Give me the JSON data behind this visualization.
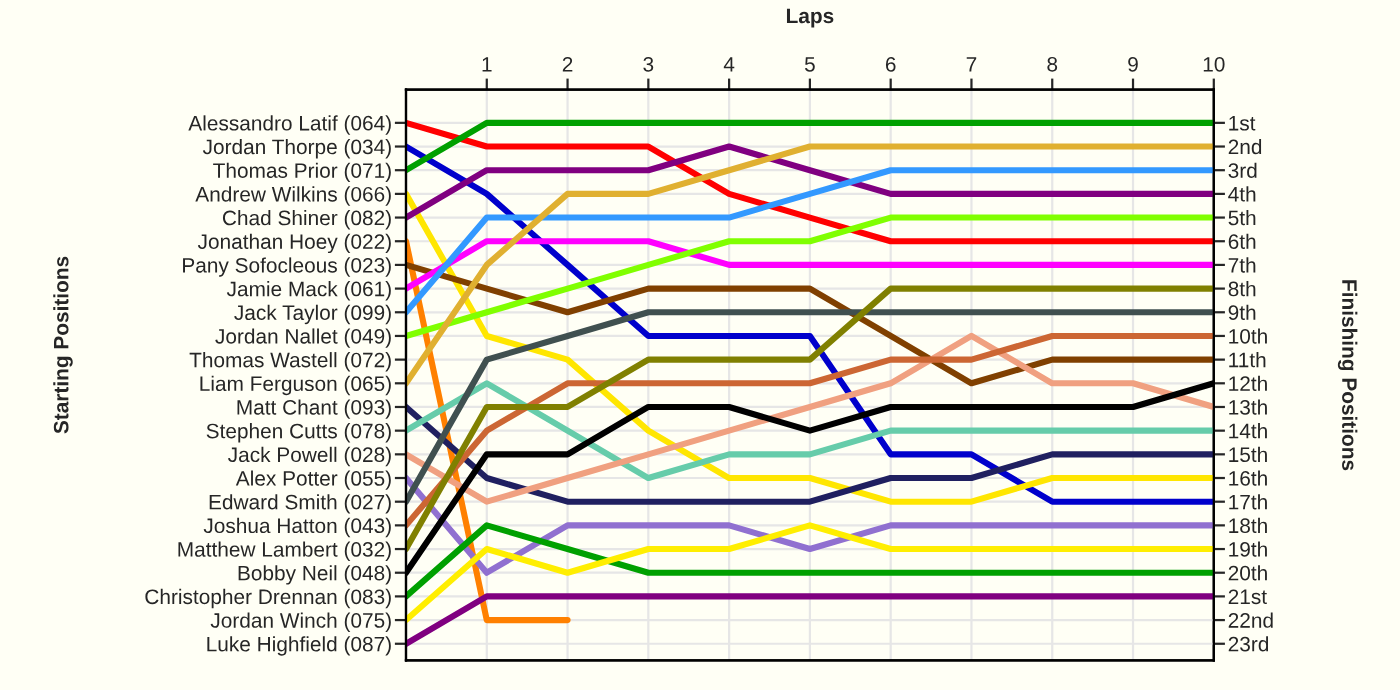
{
  "chart_data": {
    "type": "line",
    "xlabel": "Laps",
    "annotations": [
      "Starting Positions"
    ],
    "y2label": "Finishing Positions",
    "x": [
      0,
      1,
      2,
      3,
      4,
      5,
      6,
      7,
      8,
      9,
      10
    ],
    "xlim": [
      0,
      10
    ],
    "xticks": [
      1,
      2,
      3,
      4,
      5,
      6,
      7,
      8,
      9,
      10
    ],
    "y_categories": [
      "Alessandro Latif (064)",
      "Jordan Thorpe (034)",
      "Thomas Prior (071)",
      "Andrew Wilkins (066)",
      "Chad Shiner (082)",
      "Jonathan Hoey (022)",
      "Pany Sofocleous (023)",
      "Jamie Mack (061)",
      "Jack Taylor (099)",
      "Jordan Nallet (049)",
      "Thomas Wastell (072)",
      "Liam Ferguson (065)",
      "Matt Chant (093)",
      "Stephen Cutts (078)",
      "Jack Powell (028)",
      "Alex Potter (055)",
      "Edward Smith (027)",
      "Joshua Hatton (043)",
      "Matthew Lambert (032)",
      "Bobby Neil (048)",
      "Christopher Drennan (083)",
      "Jordan Winch (075)",
      "Luke Highfield (087)"
    ],
    "y2lim": [
      23.7,
      -0.4
    ],
    "y2ticks": [
      {
        "value": 1,
        "label": "1st"
      },
      {
        "value": 2,
        "label": "2nd"
      },
      {
        "value": 3,
        "label": "3rd"
      },
      {
        "value": 4,
        "label": "4th"
      },
      {
        "value": 5,
        "label": "5th"
      },
      {
        "value": 6,
        "label": "6th"
      },
      {
        "value": 7,
        "label": "7th"
      },
      {
        "value": 8,
        "label": "8th"
      },
      {
        "value": 9,
        "label": "9th"
      },
      {
        "value": 10,
        "label": "10th"
      },
      {
        "value": 11,
        "label": "11th"
      },
      {
        "value": 12,
        "label": "12th"
      },
      {
        "value": 13,
        "label": "13th"
      },
      {
        "value": 14,
        "label": "14th"
      },
      {
        "value": 15,
        "label": "15th"
      },
      {
        "value": 16,
        "label": "16th"
      },
      {
        "value": 17,
        "label": "17th"
      },
      {
        "value": 18,
        "label": "18th"
      },
      {
        "value": 19,
        "label": "19th"
      },
      {
        "value": 20,
        "label": "20th"
      },
      {
        "value": 21,
        "label": "21st"
      },
      {
        "value": 22,
        "label": "22nd"
      },
      {
        "value": 23,
        "label": "23rd"
      }
    ],
    "grid": true,
    "legend": false,
    "marker": "none",
    "line_style": "solid",
    "series": [
      {
        "axis": "y2",
        "color": "#ff0000",
        "values": [
          1,
          2,
          2,
          2,
          4,
          5,
          6,
          6,
          6,
          6,
          6
        ]
      },
      {
        "axis": "y2",
        "color": "#0000cc",
        "values": [
          2,
          4,
          7,
          10,
          10,
          10,
          15,
          15,
          17,
          17,
          17
        ]
      },
      {
        "axis": "y2",
        "color": "#00a000",
        "values": [
          3,
          1,
          1,
          1,
          1,
          1,
          1,
          1,
          1,
          1,
          1
        ]
      },
      {
        "axis": "y2",
        "color": "#ffe600",
        "values": [
          4,
          10,
          11,
          14,
          16,
          16,
          17,
          17,
          16,
          16,
          16
        ]
      },
      {
        "axis": "y2",
        "color": "#800080",
        "values": [
          5,
          3,
          3,
          3,
          2,
          3,
          4,
          4,
          4,
          4,
          4
        ]
      },
      {
        "axis": "y2",
        "color": "#ff8000",
        "values": [
          6,
          22,
          22,
          null,
          null,
          null,
          null,
          null,
          null,
          null,
          null
        ]
      },
      {
        "axis": "y2",
        "color": "#804000",
        "values": [
          7,
          8,
          9,
          8,
          8,
          8,
          10,
          12,
          11,
          11,
          11
        ]
      },
      {
        "axis": "y2",
        "color": "#ff00ff",
        "values": [
          8,
          6,
          6,
          6,
          7,
          7,
          7,
          7,
          7,
          7,
          7
        ]
      },
      {
        "axis": "y2",
        "color": "#3399ff",
        "values": [
          9,
          5,
          5,
          5,
          5,
          4,
          3,
          3,
          3,
          3,
          3
        ]
      },
      {
        "axis": "y2",
        "color": "#80ff00",
        "values": [
          10,
          9,
          8,
          7,
          6,
          6,
          5,
          5,
          5,
          5,
          5
        ]
      },
      {
        "axis": "y2",
        "color": "#e0b030",
        "values": [
          12,
          7,
          4,
          4,
          3,
          2,
          2,
          2,
          2,
          2,
          2
        ]
      },
      {
        "axis": "y2",
        "color": "#202060",
        "values": [
          13,
          16,
          17,
          17,
          17,
          17,
          16,
          16,
          15,
          15,
          15
        ]
      },
      {
        "axis": "y2",
        "color": "#66ccaa",
        "values": [
          14,
          12,
          14,
          16,
          15,
          15,
          14,
          14,
          14,
          14,
          14
        ]
      },
      {
        "axis": "y2",
        "color": "#f0a080",
        "values": [
          15,
          17,
          16,
          15,
          14,
          13,
          12,
          10,
          12,
          12,
          13
        ]
      },
      {
        "axis": "y2",
        "color": "#9070d0",
        "values": [
          16,
          20,
          18,
          18,
          18,
          19,
          18,
          18,
          18,
          18,
          18
        ]
      },
      {
        "axis": "y2",
        "color": "#405050",
        "values": [
          17,
          11,
          10,
          9,
          9,
          9,
          9,
          9,
          9,
          9,
          9
        ]
      },
      {
        "axis": "y2",
        "color": "#cc6633",
        "values": [
          18,
          14,
          12,
          12,
          12,
          12,
          11,
          11,
          10,
          10,
          10
        ]
      },
      {
        "axis": "y2",
        "color": "#808000",
        "values": [
          19,
          13,
          13,
          11,
          11,
          11,
          8,
          8,
          8,
          8,
          8
        ]
      },
      {
        "axis": "y2",
        "color": "#000000",
        "values": [
          20,
          15,
          15,
          13,
          13,
          14,
          13,
          13,
          13,
          13,
          12
        ]
      },
      {
        "axis": "y2",
        "color": "#00a000",
        "values": [
          21,
          18,
          19,
          20,
          20,
          20,
          20,
          20,
          20,
          20,
          20
        ]
      },
      {
        "axis": "y2",
        "color": "#ffee00",
        "values": [
          22,
          19,
          20,
          19,
          19,
          18,
          19,
          19,
          19,
          19,
          19
        ]
      },
      {
        "axis": "y2",
        "color": "#800080",
        "values": [
          23,
          21,
          21,
          21,
          21,
          21,
          21,
          21,
          21,
          21,
          21
        ]
      }
    ]
  }
}
